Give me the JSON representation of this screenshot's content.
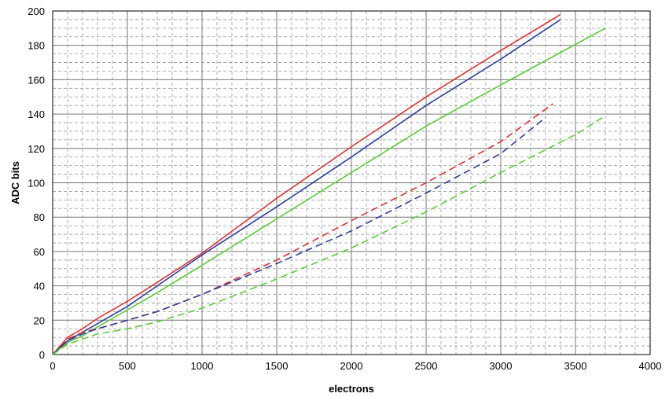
{
  "chart_data": {
    "type": "line",
    "title": "",
    "xlabel": "electrons",
    "ylabel": "ADC bits",
    "xlim": [
      0,
      4000
    ],
    "ylim": [
      0,
      200
    ],
    "xticks": [
      0,
      500,
      1000,
      1500,
      2000,
      2500,
      3000,
      3500,
      4000
    ],
    "yticks": [
      0,
      20,
      40,
      60,
      80,
      100,
      120,
      140,
      160,
      180,
      200
    ],
    "grid": true,
    "minor_grid": true,
    "legend": "none",
    "series": [
      {
        "color": "#e03030",
        "style": "solid",
        "x": [
          0,
          100,
          200,
          300,
          500,
          700,
          1000,
          1500,
          2000,
          2500,
          3000,
          3400
        ],
        "y": [
          0,
          10,
          15,
          21,
          31,
          42,
          59,
          91,
          121,
          150,
          177,
          198
        ]
      },
      {
        "color": "#2a3f9f",
        "style": "solid",
        "x": [
          0,
          100,
          200,
          300,
          500,
          700,
          1000,
          1500,
          2000,
          2500,
          3000,
          3400
        ],
        "y": [
          0,
          8,
          13,
          18,
          28,
          40,
          58,
          86,
          115,
          145,
          172,
          195
        ]
      },
      {
        "color": "#5ccc3a",
        "style": "solid",
        "x": [
          0,
          100,
          200,
          300,
          500,
          700,
          1000,
          1500,
          2000,
          2500,
          3000,
          3700
        ],
        "y": [
          0,
          7,
          11,
          16,
          26,
          36,
          52,
          79,
          106,
          133,
          157,
          190
        ]
      },
      {
        "color": "#e03030",
        "style": "dashed",
        "x": [
          0,
          100,
          200,
          300,
          500,
          700,
          1000,
          1500,
          2000,
          2500,
          3000,
          3350
        ],
        "y": [
          0,
          9,
          13,
          15,
          20,
          25,
          35,
          55,
          78,
          100,
          124,
          146
        ]
      },
      {
        "color": "#2a3f9f",
        "style": "dashed",
        "x": [
          0,
          100,
          200,
          300,
          500,
          700,
          1000,
          1500,
          2000,
          2500,
          3000,
          3300
        ],
        "y": [
          0,
          8,
          12,
          15,
          20,
          25,
          35,
          53,
          72,
          94,
          117,
          138
        ]
      },
      {
        "color": "#5ccc3a",
        "style": "dashed",
        "x": [
          0,
          100,
          200,
          300,
          500,
          700,
          1000,
          1500,
          2000,
          2500,
          3000,
          3500,
          3700
        ],
        "y": [
          0,
          6,
          9,
          12,
          15,
          19,
          27,
          44,
          62,
          83,
          106,
          128,
          139
        ]
      }
    ]
  }
}
